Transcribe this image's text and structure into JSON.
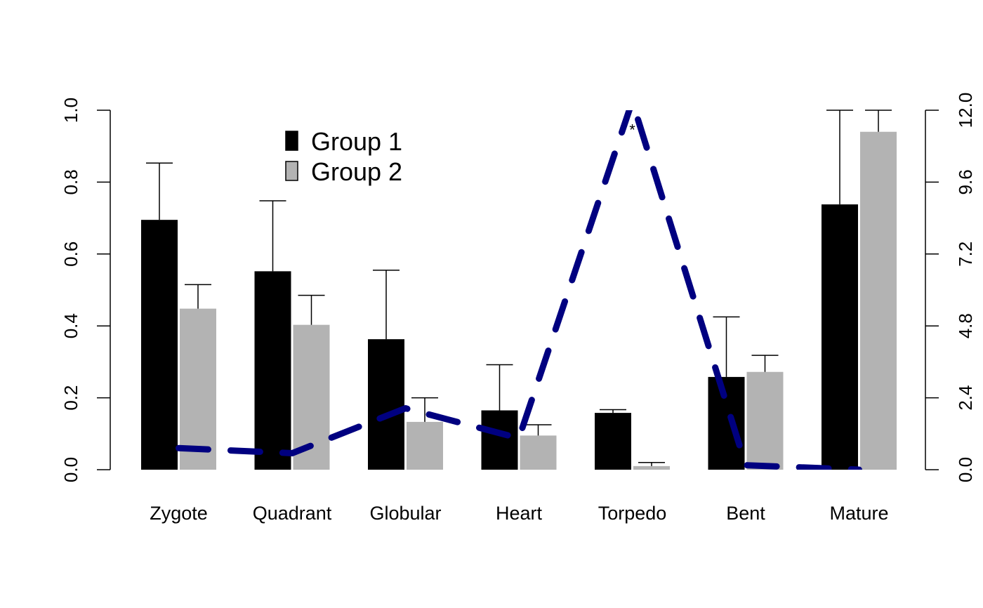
{
  "chart_data": {
    "type": "bar",
    "categories": [
      "Zygote",
      "Quadrant",
      "Globular",
      "Heart",
      "Torpedo",
      "Bent",
      "Mature"
    ],
    "series": [
      {
        "name": "Group 1",
        "color": "#000000",
        "values": [
          0.695,
          0.552,
          0.363,
          0.165,
          0.158,
          0.258,
          0.738
        ],
        "error_upper": [
          0.853,
          0.748,
          0.555,
          0.292,
          0.167,
          0.425,
          1.0
        ]
      },
      {
        "name": "Group 2",
        "color": "#b3b3b3",
        "values": [
          0.448,
          0.403,
          0.133,
          0.095,
          0.01,
          0.272,
          0.94
        ],
        "error_upper": [
          0.515,
          0.485,
          0.2,
          0.125,
          0.02,
          0.318,
          1.0
        ]
      }
    ],
    "ylim": [
      0,
      1.0
    ],
    "y_ticks": [
      "0.0",
      "0.2",
      "0.4",
      "0.6",
      "0.8",
      "1.0"
    ],
    "line_series": {
      "color": "#000080",
      "style": "dashed",
      "axis": "right",
      "values": [
        0.72,
        0.55,
        2.05,
        1.05,
        12.3,
        0.15,
        0.0
      ]
    },
    "y2lim": [
      0,
      12.0
    ],
    "y2_ticks": [
      "0.0",
      "2.4",
      "4.8",
      "7.2",
      "9.6",
      "12.0"
    ],
    "annotations": [
      {
        "text": "*",
        "category": "Torpedo",
        "y2": 11.5
      }
    ],
    "legend": {
      "position": "top-left"
    },
    "grid": false,
    "title": "",
    "xlabel": "",
    "ylabel": ""
  }
}
